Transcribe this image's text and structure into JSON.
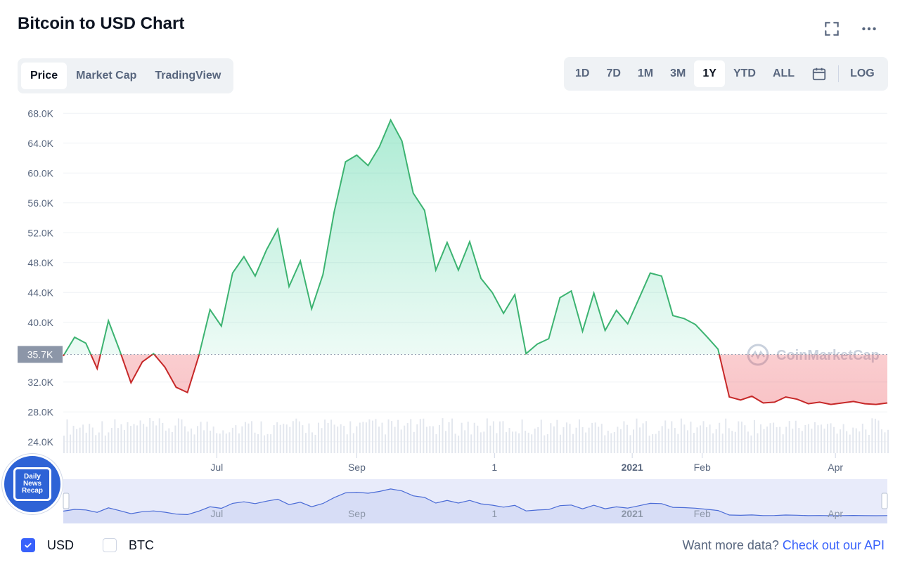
{
  "header": {
    "title": "Bitcoin to USD Chart"
  },
  "view_tabs": [
    {
      "label": "Price",
      "active": true
    },
    {
      "label": "Market Cap",
      "active": false
    },
    {
      "label": "TradingView",
      "active": false
    }
  ],
  "ranges": [
    {
      "label": "1D",
      "active": false
    },
    {
      "label": "7D",
      "active": false
    },
    {
      "label": "1M",
      "active": false
    },
    {
      "label": "3M",
      "active": false
    },
    {
      "label": "1Y",
      "active": true
    },
    {
      "label": "YTD",
      "active": false
    },
    {
      "label": "ALL",
      "active": false
    }
  ],
  "log_label": "LOG",
  "icons": {
    "fullscreen": "fullscreen-icon",
    "more": "more-icon",
    "calendar": "calendar-icon"
  },
  "colors": {
    "up": "#16c784",
    "down": "#ea3943",
    "accent": "#3861fb",
    "line_up": "#3cb371",
    "line_down": "#c62828"
  },
  "watermark": "CoinMarketCap",
  "logo": {
    "lines": [
      "Daily",
      "News",
      "Recap"
    ]
  },
  "footer": {
    "checkboxes": [
      {
        "label": "USD",
        "checked": true
      },
      {
        "label": "BTC",
        "checked": false
      }
    ],
    "more_text": "Want more data?",
    "link_text": "Check out our API"
  },
  "chart_data": {
    "type": "line",
    "series": [
      {
        "x": [
          "2020-04-24",
          "2020-04-29",
          "2020-05-04",
          "2020-05-09",
          "2020-05-14",
          "2020-05-19",
          "2020-05-24",
          "2020-05-29",
          "2020-06-03",
          "2020-06-08",
          "2020-06-13",
          "2020-06-18",
          "2020-06-23",
          "2020-06-28",
          "2020-07-03",
          "2020-07-08",
          "2020-07-13",
          "2020-07-18",
          "2020-07-23",
          "2020-07-28",
          "2020-08-02",
          "2020-08-07",
          "2020-08-12",
          "2020-08-17",
          "2020-08-22",
          "2020-08-27",
          "2020-09-01",
          "2020-09-06",
          "2020-09-11",
          "2020-09-16",
          "2020-09-21",
          "2020-09-26",
          "2020-10-01",
          "2020-10-06",
          "2020-10-11",
          "2020-10-16",
          "2020-10-21",
          "2020-10-26",
          "2020-10-31",
          "2020-11-05",
          "2020-11-10",
          "2020-11-15",
          "2020-11-20",
          "2020-11-25",
          "2020-11-30",
          "2020-12-05",
          "2020-12-10",
          "2020-12-15",
          "2020-12-20",
          "2020-12-25",
          "2020-12-30",
          "2021-01-04",
          "2021-01-09",
          "2021-01-14",
          "2021-01-19",
          "2021-01-24",
          "2021-01-29",
          "2021-02-03",
          "2021-02-08",
          "2021-02-13",
          "2021-02-18",
          "2021-02-23",
          "2021-02-28",
          "2021-03-05",
          "2021-03-10",
          "2021-03-15",
          "2021-03-20",
          "2021-03-25",
          "2021-03-30",
          "2021-04-04",
          "2021-04-09",
          "2021-04-14",
          "2021-04-19",
          "2021-04-24"
        ],
        "y": [
          35500,
          38000,
          37200,
          33800,
          40200,
          36200,
          31900,
          34700,
          35800,
          34000,
          31300,
          30600,
          35500,
          41700,
          39500,
          46600,
          48800,
          46200,
          49700,
          52500,
          44800,
          48200,
          41800,
          46400,
          54800,
          61500,
          62400,
          61000,
          63500,
          67100,
          64300,
          57300,
          55000,
          47000,
          50700,
          47000,
          50800,
          45900,
          44000,
          41200,
          43700,
          35800,
          37100,
          37800,
          43300,
          44200,
          38800,
          43900,
          38900,
          41600,
          39800,
          43200,
          46600,
          46200,
          40900,
          40500,
          39700,
          38100,
          36400,
          30000,
          29600,
          30100,
          29200,
          29300,
          30000,
          29700,
          29100,
          29300,
          29000,
          29200,
          29400,
          29100,
          29000,
          29200
        ]
      }
    ],
    "baseline": 35700,
    "baseline_label": "35.7K",
    "ylim": [
      22000,
      70000
    ],
    "y_ticks": [
      {
        "value": 68000,
        "label": "68.0K"
      },
      {
        "value": 64000,
        "label": "64.0K"
      },
      {
        "value": 60000,
        "label": "60.0K"
      },
      {
        "value": 56000,
        "label": "56.0K"
      },
      {
        "value": 52000,
        "label": "52.0K"
      },
      {
        "value": 48000,
        "label": "48.0K"
      },
      {
        "value": 44000,
        "label": "44.0K"
      },
      {
        "value": 40000,
        "label": "40.0K"
      },
      {
        "value": 32000,
        "label": "32.0K"
      },
      {
        "value": 28000,
        "label": "28.0K"
      },
      {
        "value": 24000,
        "label": "24.0K"
      }
    ],
    "x_ticks": [
      {
        "date": "2020-07-01",
        "label": "Jul",
        "bold": false
      },
      {
        "date": "2020-09-01",
        "label": "Sep",
        "bold": false
      },
      {
        "date": "2020-11-01",
        "label": "1",
        "bold": false
      },
      {
        "date": "2021-01-01",
        "label": "2021",
        "bold": true
      },
      {
        "date": "2021-02-01",
        "label": "Feb",
        "bold": false
      },
      {
        "date": "2021-04-01",
        "label": "Apr",
        "bold": false
      }
    ],
    "grid": true,
    "volume_bars": true
  }
}
